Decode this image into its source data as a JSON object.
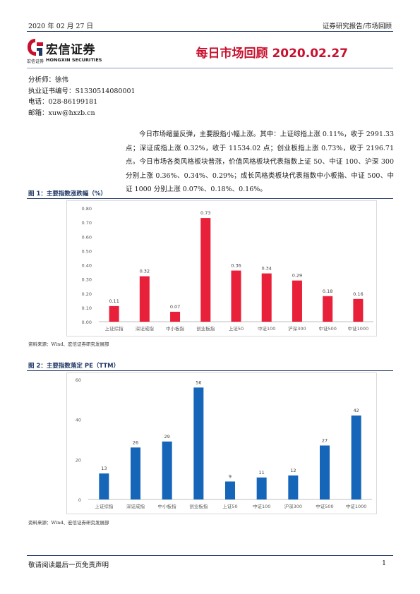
{
  "header": {
    "date": "2020 年 02 月 27 日",
    "category": "证券研究报告/市场回顾",
    "logo_cn": "宏信证券",
    "logo_sub_cn": "宏信证券",
    "logo_sub_en": "HONGXIN SECURITIES",
    "report_title": "每日市场回顾 2020.02.27"
  },
  "analyst": {
    "name_line": "分析师：徐伟",
    "cert_line": "执业证书编号：S1330514080001",
    "phone_line": "电话：028-86199181",
    "email_line": "邮箱：xuw@hxzb.cn"
  },
  "summary": "今日市场缩量反弹，主要股指小幅上涨。其中：上证综指上涨 0.11%，收于 2991.33 点；深证成指上涨 0.32%，收于 11534.02 点；创业板指上涨 0.73%，收于 2196.71 点。今日市场各类风格板块普涨，价值风格板块代表指数上证 50、中证 100、沪深 300 分别上涨 0.36%、0.34%、0.29%；成长风格类板块代表指数中小板指、中证 500、中证 1000 分别上涨 0.07%、0.18%、0.16%。",
  "figures": {
    "fig1_title": "图 1：主要指数涨跌幅（%）",
    "fig1_source": "资料来源：Wind、宏信证券研究发展部",
    "fig2_title": "图 2：主要指数落定 PE（TTM）",
    "fig2_source": "资料来源：Wind、宏信证券研究发展部"
  },
  "chart_data": [
    {
      "type": "bar",
      "title": "图 1：主要指数涨跌幅（%）",
      "categories": [
        "上证综指",
        "深证成指",
        "中小板指",
        "创业板指",
        "上证50",
        "中证100",
        "沪深300",
        "中证500",
        "中证1000"
      ],
      "values": [
        0.11,
        0.32,
        0.07,
        0.73,
        0.36,
        0.34,
        0.29,
        0.18,
        0.16
      ],
      "value_labels": [
        "0.11",
        "0.32",
        "0.07",
        "0.73",
        "0.36",
        "0.34",
        "0.29",
        "0.18",
        "0.16"
      ],
      "y_ticks": [
        "0.00",
        "0.10",
        "0.20",
        "0.30",
        "0.40",
        "0.50",
        "0.60",
        "0.70",
        "0.80"
      ],
      "ylim": [
        0,
        0.8
      ],
      "color": "#e8203a",
      "grid": false,
      "legend": "none"
    },
    {
      "type": "bar",
      "title": "图 2：主要指数落定 PE（TTM）",
      "categories": [
        "上证综指",
        "深证成指",
        "中小板指",
        "创业板指",
        "上证50",
        "中证100",
        "沪深300",
        "中证500",
        "中证1000"
      ],
      "values": [
        13,
        26,
        29,
        56,
        9,
        11,
        12,
        27,
        42
      ],
      "value_labels": [
        "13",
        "26",
        "29",
        "56",
        "9",
        "11",
        "12",
        "27",
        "42"
      ],
      "y_ticks": [
        "0",
        "20",
        "40",
        "60"
      ],
      "ylim": [
        0,
        60
      ],
      "color": "#1565b8",
      "grid": false,
      "legend": "none"
    }
  ],
  "footer": {
    "disclaimer": "敬请阅读最后一页免责声明",
    "page": "1"
  }
}
